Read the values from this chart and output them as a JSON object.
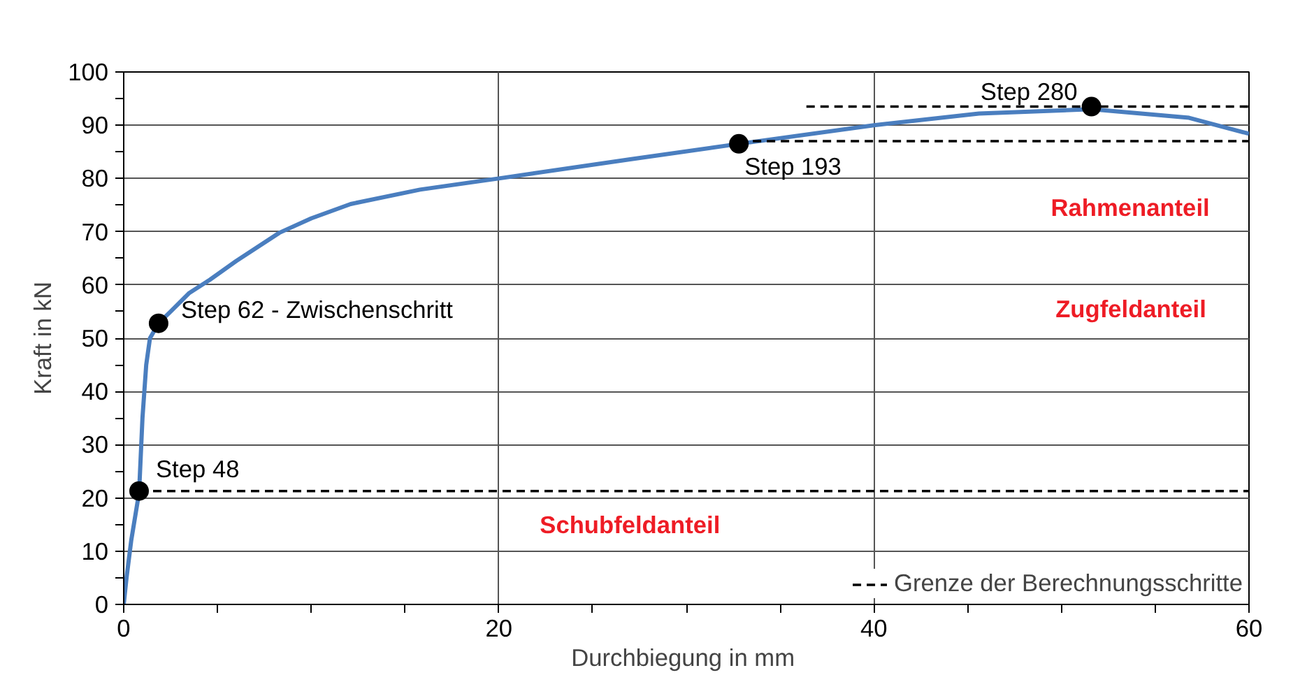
{
  "chart_data": {
    "type": "line",
    "xlabel": "Durchbiegung  in mm",
    "ylabel": "Kraft in kN",
    "xlim": [
      0,
      60
    ],
    "ylim": [
      0,
      100
    ],
    "xticks": [
      0,
      {
        "value": 5,
        "label": null
      },
      {
        "value": 10,
        "label": null
      },
      {
        "value": 15,
        "label": null
      },
      20,
      {
        "value": 25,
        "label": null
      },
      {
        "value": 30,
        "label": null
      },
      {
        "value": 35,
        "label": null
      },
      40,
      {
        "value": 45,
        "label": null
      },
      {
        "value": 50,
        "label": null
      },
      {
        "value": 55,
        "label": null
      },
      60
    ],
    "yticks": [
      0,
      {
        "value": 5,
        "label": null
      },
      10,
      {
        "value": 15,
        "label": null
      },
      20,
      {
        "value": 25,
        "label": null
      },
      30,
      {
        "value": 35,
        "label": null
      },
      40,
      {
        "value": 45,
        "label": null
      },
      50,
      {
        "value": 55,
        "label": null
      },
      60,
      {
        "value": 65,
        "label": null
      },
      70,
      {
        "value": 75,
        "label": null
      },
      80,
      {
        "value": 85,
        "label": null
      },
      90,
      {
        "value": 95,
        "label": null
      },
      100
    ],
    "grid": true,
    "legend": "bottom right",
    "series": [
      {
        "color": "#4a7ebf",
        "line_style": "solid",
        "x": [
          0,
          0.15,
          0.4,
          0.82,
          1.0,
          1.2,
          1.4,
          1.86,
          2.5,
          3.5,
          4.6,
          6,
          8.3,
          10,
          12.1,
          15.8,
          20,
          27,
          32.8,
          40,
          45.6,
          51.6,
          56.8,
          60
        ],
        "values": [
          0,
          5,
          12,
          21,
          35,
          45,
          50,
          52.8,
          55,
          58.5,
          61,
          64.5,
          69.8,
          72.5,
          75.2,
          77.9,
          80,
          83.6,
          86.5,
          90,
          92.2,
          93,
          91.4,
          88.4
        ]
      },
      {
        "type": "line",
        "name": "Grenze der Berechnungsschritte",
        "color": "#000000",
        "line_style": "dashed",
        "x": [
          0.82,
          60
        ],
        "values": [
          21.3,
          21.3
        ]
      },
      {
        "type": "line",
        "color": "#000000",
        "line_style": "dashed",
        "x": [
          32.8,
          60
        ],
        "values": [
          87,
          87
        ]
      },
      {
        "type": "line",
        "color": "#000000",
        "line_style": "dashed",
        "x": [
          36.4,
          60
        ],
        "values": [
          93.5,
          93.5
        ]
      },
      {
        "type": "scatter",
        "color": "#000000",
        "marker": "circle",
        "x": [
          0.82,
          1.86,
          32.8,
          51.6
        ],
        "values": [
          21.3,
          52.8,
          86.5,
          93.5
        ],
        "value_labels": [
          "Step 48",
          "Step 62 - Zwischenschritt",
          "Step 193",
          "Step 280"
        ]
      }
    ],
    "annotations": [
      "Rahmenanteil",
      "Zugfeldanteil",
      "Schubfeldanteil"
    ]
  }
}
